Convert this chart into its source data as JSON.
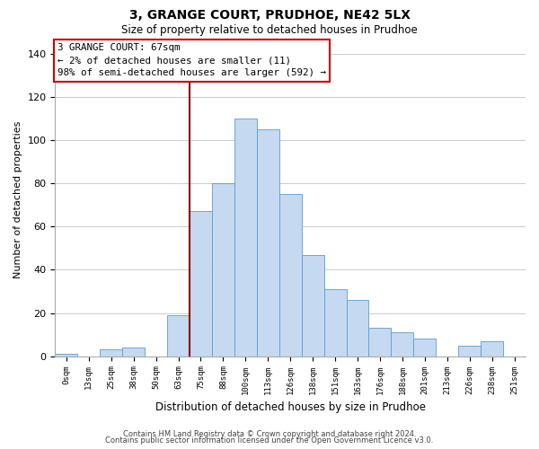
{
  "title": "3, GRANGE COURT, PRUDHOE, NE42 5LX",
  "subtitle": "Size of property relative to detached houses in Prudhoe",
  "xlabel": "Distribution of detached houses by size in Prudhoe",
  "ylabel": "Number of detached properties",
  "bar_color": "#c5d9f0",
  "bar_edge_color": "#5b9bd5",
  "vline_color": "#8b0000",
  "vline_x_index": 6,
  "bin_labels": [
    "0sqm",
    "13sqm",
    "25sqm",
    "38sqm",
    "50sqm",
    "63sqm",
    "75sqm",
    "88sqm",
    "100sqm",
    "113sqm",
    "126sqm",
    "138sqm",
    "151sqm",
    "163sqm",
    "176sqm",
    "188sqm",
    "201sqm",
    "213sqm",
    "226sqm",
    "238sqm",
    "251sqm"
  ],
  "bar_heights": [
    1,
    0,
    3,
    4,
    0,
    19,
    67,
    80,
    110,
    105,
    75,
    47,
    31,
    26,
    13,
    11,
    8,
    0,
    5,
    7,
    0
  ],
  "ylim": [
    0,
    145
  ],
  "yticks": [
    0,
    20,
    40,
    60,
    80,
    100,
    120,
    140
  ],
  "annotation_title": "3 GRANGE COURT: 67sqm",
  "annotation_line1": "← 2% of detached houses are smaller (11)",
  "annotation_line2": "98% of semi-detached houses are larger (592) →",
  "footer_line1": "Contains HM Land Registry data © Crown copyright and database right 2024.",
  "footer_line2": "Contains public sector information licensed under the Open Government Licence v3.0.",
  "background_color": "#ffffff",
  "grid_color": "#cccccc"
}
